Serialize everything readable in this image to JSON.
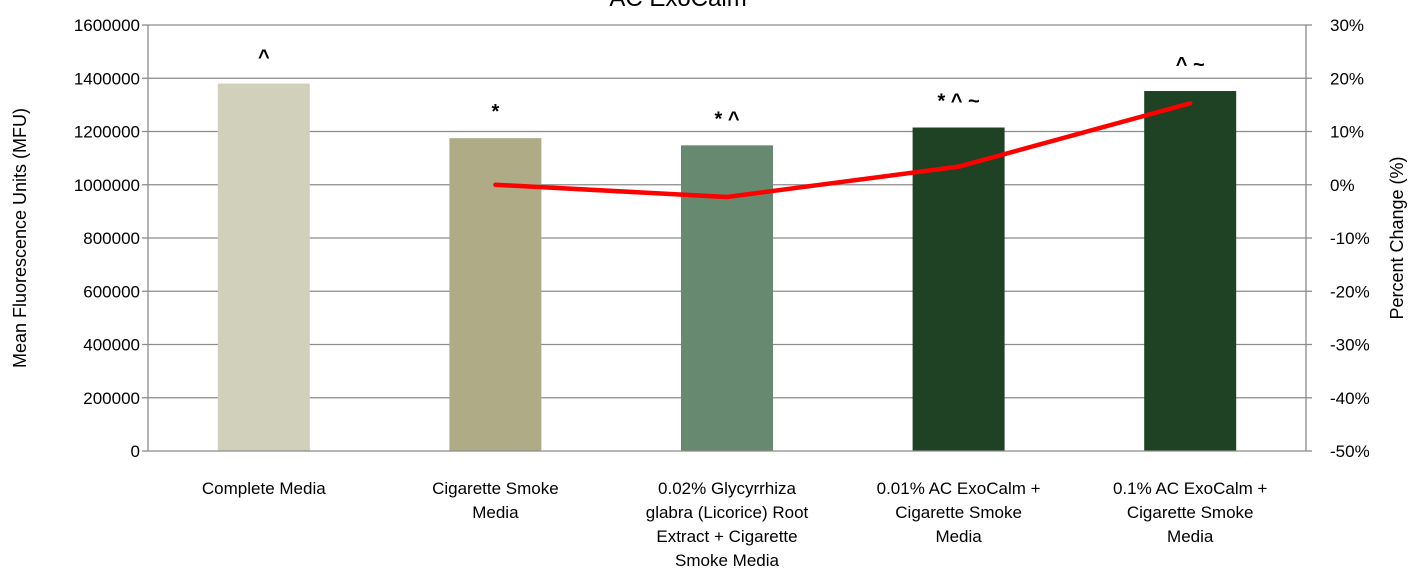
{
  "chart_data": {
    "type": "bar",
    "title": "AC ExoCalm",
    "ylabel": "Mean Fluorescence Units (MFU)",
    "y2label": "Percent Change (%)",
    "ylim": [
      0,
      1600000
    ],
    "yticks": [
      "0",
      "200000",
      "400000",
      "600000",
      "800000",
      "1000000",
      "1200000",
      "1400000",
      "1600000"
    ],
    "y2lim": [
      -0.5,
      0.3
    ],
    "y2ticks": [
      "-50%",
      "-40%",
      "-30%",
      "-20%",
      "-10%",
      "0%",
      "10%",
      "20%",
      "30%"
    ],
    "grid": true,
    "categories": [
      [
        "Complete Media"
      ],
      [
        "Cigarette Smoke",
        "Media"
      ],
      [
        "0.02% Glycyrrhiza",
        "glabra (Licorice) Root",
        "Extract + Cigarette",
        "Smoke Media"
      ],
      [
        "0.01% AC ExoCalm +",
        "Cigarette Smoke",
        "Media"
      ],
      [
        "0.1% AC ExoCalm +",
        "Cigarette Smoke",
        "Media"
      ]
    ],
    "values": [
      1380000,
      1175000,
      1148000,
      1215000,
      1352000
    ],
    "bar_colors": [
      "#d1d0bb",
      "#aeab86",
      "#66896f",
      "#1e4223",
      "#1e4223"
    ],
    "annotations": [
      "^",
      "*",
      "* ^",
      "* ^ ~",
      "^ ~"
    ],
    "line_series": {
      "color": "#ff0000",
      "start_index": 1,
      "values": [
        0.0,
        -0.023,
        0.034,
        0.153
      ]
    }
  }
}
